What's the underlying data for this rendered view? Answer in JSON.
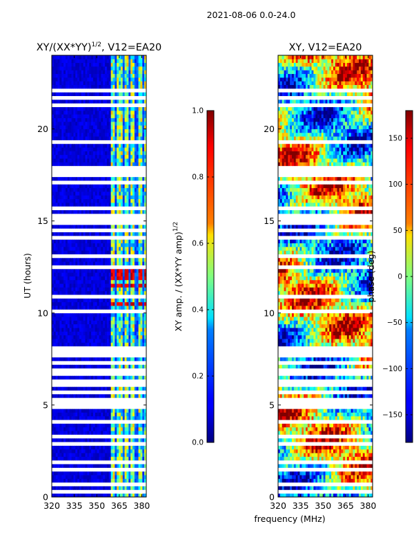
{
  "figure": {
    "suptitle": "2021-08-06 0.0-24.0",
    "shared_xlabel": "frequency (MHz)"
  },
  "chart_data": [
    {
      "type": "heatmap",
      "title_main": "XY/(XX*YY)",
      "title_sup": "1/2",
      "title_tail": ", V12=EA20",
      "xlabel": "",
      "ylabel": "UT (hours)",
      "xlim": [
        320,
        383
      ],
      "ylim": [
        0,
        24
      ],
      "xticks": [
        "320",
        "335",
        "350",
        "365",
        "380"
      ],
      "xtick_values": [
        320,
        335,
        350,
        365,
        380
      ],
      "yticks": [
        "0",
        "5",
        "10",
        "15",
        "20"
      ],
      "ytick_values": [
        0,
        5,
        10,
        15,
        20
      ],
      "colormap": "jet",
      "colorbar": {
        "label_main": "XY amp. / (XX*YY amp)",
        "label_sup": "1/2",
        "range": [
          0.0,
          1.0
        ],
        "ticks": [
          "0.0",
          "0.2",
          "0.4",
          "0.6",
          "0.8",
          "1.0"
        ],
        "tick_values": [
          0.0,
          0.2,
          0.4,
          0.6,
          0.8,
          1.0
        ]
      },
      "active_band_mhz": [
        359,
        383
      ],
      "channel_stripes_mhz": [
        363,
        367.5,
        372,
        376.5,
        381
      ],
      "flagged_hours": [
        0.3,
        0.7,
        1.2,
        1.55,
        1.9,
        2.4,
        2.9,
        3.3,
        3.6,
        4.1,
        4.4,
        4.9,
        5.1,
        5.3,
        5.7,
        6.1,
        6.3,
        6.7,
        6.9,
        7.3,
        7.7,
        7.9,
        8.1,
        8.6,
        9.6,
        10.1,
        10.9,
        11.6,
        12.5,
        12.8,
        13.1,
        13.6,
        14.1,
        14.5,
        14.9,
        15.1,
        15.3,
        15.7,
        16.2,
        17.1,
        17.5,
        17.7,
        17.9,
        18.8,
        19.3,
        20.4,
        20.8,
        21.3,
        21.7,
        22.1,
        22.4,
        22.8,
        23.2,
        23.6
      ],
      "bright_hours": [
        10.5,
        11.5,
        11.9,
        12.2
      ]
    },
    {
      "type": "heatmap",
      "title_main": "XY, V12=EA20",
      "xlabel": "",
      "ylabel": "",
      "xlim": [
        320,
        383
      ],
      "ylim": [
        0,
        24
      ],
      "xticks": [
        "320",
        "335",
        "350",
        "365",
        "380"
      ],
      "xtick_values": [
        320,
        335,
        350,
        365,
        380
      ],
      "yticks": [
        "0",
        "5",
        "10",
        "15",
        "20"
      ],
      "ytick_values": [
        0,
        5,
        10,
        15,
        20
      ],
      "colormap": "jet",
      "colorbar": {
        "label_main": "phase (deg)",
        "range": [
          -180,
          180
        ],
        "ticks": [
          "−150",
          "−100",
          "−50",
          "0",
          "50",
          "100",
          "150"
        ],
        "tick_values": [
          -150,
          -100,
          -50,
          0,
          50,
          100,
          150
        ]
      },
      "flagged_hours": [
        0.3,
        0.7,
        1.2,
        1.55,
        1.9,
        2.4,
        2.9,
        3.3,
        3.6,
        4.1,
        4.4,
        4.9,
        5.1,
        5.3,
        5.7,
        6.1,
        6.3,
        6.7,
        6.9,
        7.3,
        7.7,
        7.9,
        8.1,
        8.6,
        9.6,
        10.1,
        10.9,
        11.6,
        12.5,
        12.8,
        13.1,
        13.6,
        14.1,
        14.5,
        14.9,
        15.1,
        15.3,
        15.7,
        16.2,
        17.1,
        17.5,
        17.7,
        17.9,
        18.8,
        19.3,
        20.4,
        20.8,
        21.3,
        21.7,
        22.1,
        22.4,
        22.8,
        23.2,
        23.6
      ]
    }
  ]
}
